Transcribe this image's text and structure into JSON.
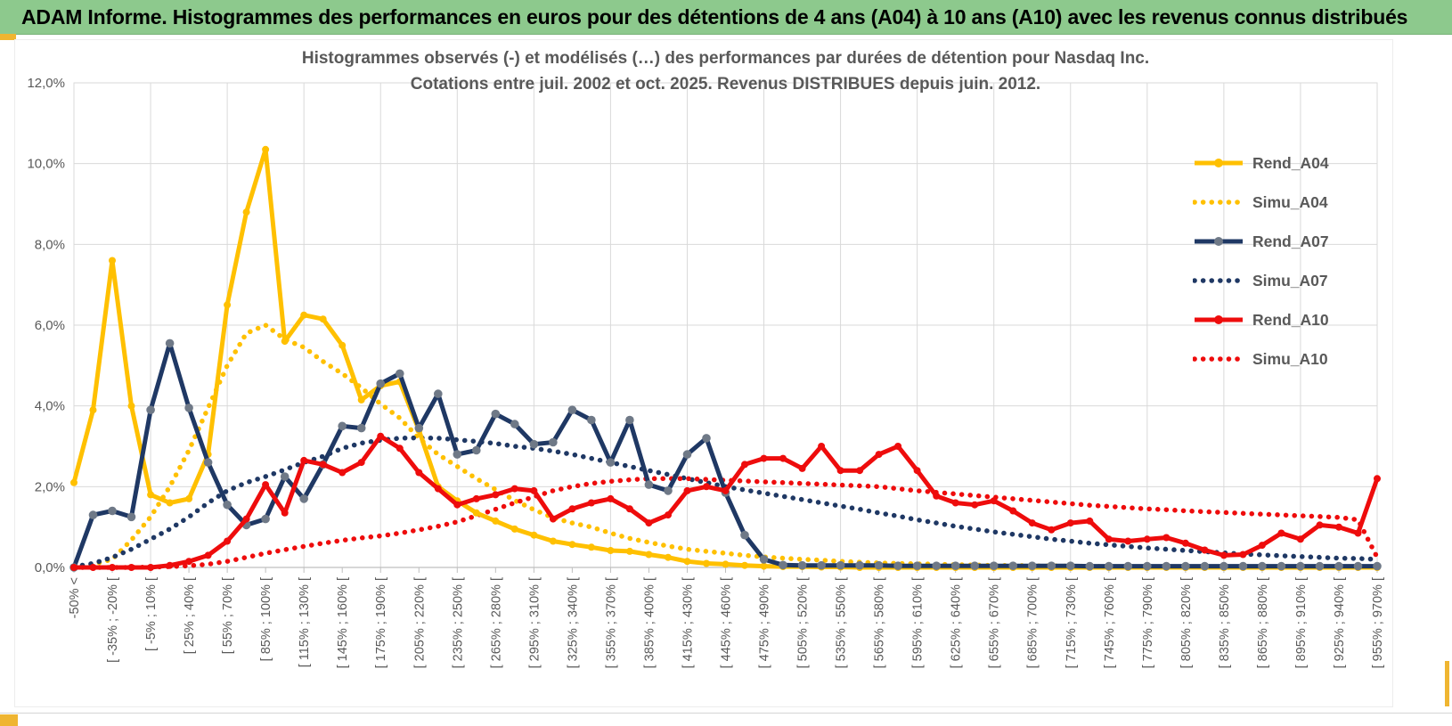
{
  "window": {
    "header_title": "ADAM Informe. Histogrammes des performances en euros pour des détentions de 4 ans (A04) à 10 ans (A10) avec les revenus connus distribués"
  },
  "colors": {
    "header_green": "#8dc98d",
    "accent_gold": "#efb531",
    "gold": "#FFC000",
    "navy": "#1F3864",
    "red": "#EE0C0C",
    "marker_gray": "#6F7987",
    "grid": "#D9D9D9",
    "axis": "#BFBFBF",
    "text_gray": "#595959"
  },
  "chart_data": {
    "type": "line",
    "title_line1": "Histogrammes observés (-) et modélisés (…) des performances par durées de détention pour Nasdaq Inc.",
    "title_line2": "Cotations entre juil. 2002 et oct. 2025. Revenus DISTRIBUES depuis juin. 2012.",
    "ylim": [
      0,
      12
    ],
    "grid": true,
    "legend_position": "right",
    "ytick_labels": [
      "0,0%",
      "2,0%",
      "4,0%",
      "6,0%",
      "8,0%",
      "10,0%",
      "12,0%"
    ],
    "x_tick_labels": [
      "-50% <",
      "[ -35% ; -20% [",
      "[ -5% ; 10% [",
      "[ 25% ; 40% [",
      "[ 55% ; 70% [",
      "[ 85% ; 100% [",
      "[ 115% ; 130% [",
      "[ 145% ; 160% [",
      "[ 175% ; 190% [",
      "[ 205% ; 220% [",
      "[ 235% ; 250% [",
      "[ 265% ; 280% [",
      "[ 295% ; 310% [",
      "[ 325% ; 340% [",
      "[ 355% ; 370% [",
      "[ 385% ; 400% [",
      "[ 415% ; 430% [",
      "[ 445% ; 460% [",
      "[ 475% ; 490% [",
      "[ 505% ; 520% [",
      "[ 535% ; 550% [",
      "[ 565% ; 580% [",
      "[ 595% ; 610% [",
      "[ 625% ; 640% [",
      "[ 655% ; 670% [",
      "[ 685% ; 700% [",
      "[ 715% ; 730% [",
      "[ 745% ; 760% [",
      "[ 775% ; 790% [",
      "[ 805% ; 820% [",
      "[ 835% ; 850% [",
      "[ 865% ; 880% [",
      "[ 895% ; 910% [",
      "[ 925% ; 940% [",
      "[ 955% ; 970% ["
    ],
    "num_points": 69,
    "x_labels_every": 2,
    "legend": [
      {
        "name": "Rend_A04",
        "color": "#FFC000",
        "style": "solid",
        "marker": "#FFC000"
      },
      {
        "name": "Simu_A04",
        "color": "#FFC000",
        "style": "dotted",
        "marker": null
      },
      {
        "name": "Rend_A07",
        "color": "#1F3864",
        "style": "solid",
        "marker": "#6F7987"
      },
      {
        "name": "Simu_A07",
        "color": "#1F3864",
        "style": "dotted",
        "marker": null
      },
      {
        "name": "Rend_A10",
        "color": "#EE0C0C",
        "style": "solid",
        "marker": "#EE0C0C"
      },
      {
        "name": "Simu_A10",
        "color": "#EE0C0C",
        "style": "dotted",
        "marker": null
      }
    ],
    "series": [
      {
        "name": "Simu_A04",
        "color": "#FFC000",
        "style": "dotted",
        "marker": null,
        "values": [
          0.02,
          0.08,
          0.2,
          0.68,
          1.25,
          2.0,
          2.9,
          3.95,
          5.0,
          5.8,
          6.0,
          5.65,
          5.45,
          5.1,
          4.8,
          4.45,
          4.05,
          3.7,
          3.2,
          2.8,
          2.5,
          2.2,
          1.93,
          1.66,
          1.43,
          1.23,
          1.1,
          1.0,
          0.85,
          0.72,
          0.62,
          0.53,
          0.45,
          0.4,
          0.35,
          0.3,
          0.26,
          0.23,
          0.2,
          0.18,
          0.15,
          0.13,
          0.11,
          0.1,
          0.09,
          0.08,
          0.07,
          0.06,
          0.05,
          0.05,
          0.04,
          0.04,
          0.03,
          0.03,
          0.02,
          0.02,
          0.02,
          0.01,
          0.01,
          0.01,
          0.01,
          0.01,
          0.01,
          0.01,
          0.01,
          0.01,
          0.01,
          0.01,
          0.01
        ]
      },
      {
        "name": "Simu_A07",
        "color": "#1F3864",
        "style": "dotted",
        "marker": null,
        "values": [
          0.02,
          0.1,
          0.25,
          0.45,
          0.7,
          0.95,
          1.25,
          1.6,
          1.9,
          2.1,
          2.25,
          2.42,
          2.6,
          2.75,
          2.95,
          3.08,
          3.15,
          3.2,
          3.21,
          3.2,
          3.16,
          3.12,
          3.07,
          3.0,
          2.95,
          2.88,
          2.8,
          2.7,
          2.6,
          2.5,
          2.4,
          2.3,
          2.2,
          2.1,
          2.0,
          1.92,
          1.84,
          1.76,
          1.68,
          1.6,
          1.52,
          1.44,
          1.35,
          1.27,
          1.18,
          1.1,
          1.02,
          0.95,
          0.88,
          0.82,
          0.76,
          0.7,
          0.65,
          0.6,
          0.56,
          0.52,
          0.48,
          0.45,
          0.42,
          0.39,
          0.36,
          0.33,
          0.31,
          0.29,
          0.27,
          0.25,
          0.23,
          0.22,
          0.2
        ]
      },
      {
        "name": "Simu_A10",
        "color": "#EE0C0C",
        "style": "dotted",
        "marker": null,
        "values": [
          0,
          0,
          0,
          0,
          0.01,
          0.02,
          0.04,
          0.08,
          0.15,
          0.25,
          0.35,
          0.44,
          0.52,
          0.6,
          0.67,
          0.73,
          0.78,
          0.85,
          0.93,
          1.02,
          1.13,
          1.28,
          1.44,
          1.6,
          1.75,
          1.9,
          2.0,
          2.08,
          2.13,
          2.17,
          2.2,
          2.2,
          2.2,
          2.18,
          2.16,
          2.14,
          2.12,
          2.1,
          2.08,
          2.06,
          2.04,
          2.02,
          2.0,
          1.95,
          1.9,
          1.86,
          1.82,
          1.78,
          1.74,
          1.7,
          1.66,
          1.62,
          1.58,
          1.54,
          1.51,
          1.48,
          1.45,
          1.43,
          1.4,
          1.38,
          1.36,
          1.34,
          1.32,
          1.3,
          1.28,
          1.26,
          1.24,
          1.18,
          0.25
        ]
      },
      {
        "name": "Rend_A04",
        "color": "#FFC000",
        "style": "solid",
        "marker": "#FFC000",
        "values": [
          2.1,
          3.9,
          7.6,
          4.0,
          1.8,
          1.6,
          1.7,
          2.8,
          6.5,
          8.8,
          10.35,
          5.6,
          6.25,
          6.15,
          5.5,
          4.15,
          4.5,
          4.6,
          3.4,
          2.0,
          1.65,
          1.35,
          1.15,
          0.95,
          0.8,
          0.65,
          0.57,
          0.5,
          0.42,
          0.4,
          0.32,
          0.25,
          0.15,
          0.1,
          0.08,
          0.05,
          0.03,
          0.02,
          0.02,
          0.01,
          0.01,
          0,
          0,
          0,
          0,
          0,
          0,
          0,
          0,
          0,
          0,
          0,
          0,
          0,
          0,
          0,
          0,
          0,
          0,
          0,
          0,
          0,
          0,
          0,
          0,
          0,
          0,
          0,
          0
        ]
      },
      {
        "name": "Rend_A07",
        "color": "#1F3864",
        "style": "solid",
        "marker": "#6F7987",
        "values": [
          0,
          1.3,
          1.4,
          1.25,
          3.9,
          5.55,
          3.95,
          2.6,
          1.55,
          1.05,
          1.2,
          2.25,
          1.7,
          2.55,
          3.5,
          3.45,
          4.55,
          4.8,
          3.45,
          4.3,
          2.8,
          2.9,
          3.8,
          3.55,
          3.05,
          3.1,
          3.9,
          3.65,
          2.6,
          3.65,
          2.05,
          1.9,
          2.8,
          3.2,
          1.85,
          0.8,
          0.2,
          0.06,
          0.05,
          0.05,
          0.05,
          0.05,
          0.05,
          0.04,
          0.04,
          0.04,
          0.04,
          0.04,
          0.04,
          0.04,
          0.04,
          0.04,
          0.04,
          0.03,
          0.03,
          0.03,
          0.03,
          0.03,
          0.03,
          0.03,
          0.03,
          0.03,
          0.03,
          0.03,
          0.03,
          0.03,
          0.03,
          0.03,
          0.03
        ]
      },
      {
        "name": "Rend_A10",
        "color": "#EE0C0C",
        "style": "solid",
        "marker": "#EE0C0C",
        "values": [
          0,
          0,
          0,
          0,
          0,
          0.05,
          0.15,
          0.3,
          0.65,
          1.2,
          2.05,
          1.35,
          2.65,
          2.55,
          2.35,
          2.6,
          3.25,
          2.95,
          2.35,
          1.95,
          1.55,
          1.7,
          1.8,
          1.95,
          1.9,
          1.2,
          1.45,
          1.6,
          1.7,
          1.45,
          1.1,
          1.3,
          1.9,
          2.0,
          1.9,
          2.55,
          2.7,
          2.7,
          2.45,
          3.0,
          2.4,
          2.4,
          2.8,
          3.0,
          2.4,
          1.77,
          1.6,
          1.55,
          1.65,
          1.4,
          1.1,
          0.93,
          1.1,
          1.15,
          0.7,
          0.65,
          0.7,
          0.74,
          0.6,
          0.43,
          0.3,
          0.32,
          0.55,
          0.85,
          0.7,
          1.05,
          1.0,
          0.85,
          2.2
        ]
      }
    ]
  }
}
